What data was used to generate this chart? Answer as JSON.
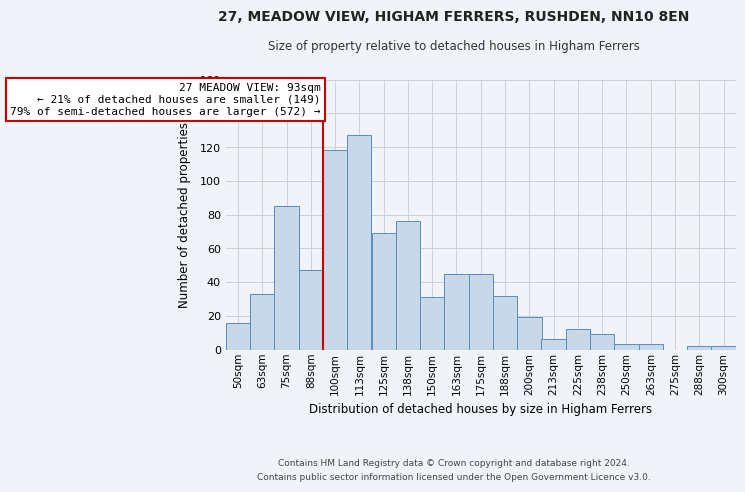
{
  "title": "27, MEADOW VIEW, HIGHAM FERRERS, RUSHDEN, NN10 8EN",
  "subtitle": "Size of property relative to detached houses in Higham Ferrers",
  "xlabel": "Distribution of detached houses by size in Higham Ferrers",
  "ylabel": "Number of detached properties",
  "bar_labels": [
    "50sqm",
    "63sqm",
    "75sqm",
    "88sqm",
    "100sqm",
    "113sqm",
    "125sqm",
    "138sqm",
    "150sqm",
    "163sqm",
    "175sqm",
    "188sqm",
    "200sqm",
    "213sqm",
    "225sqm",
    "238sqm",
    "250sqm",
    "263sqm",
    "275sqm",
    "288sqm",
    "300sqm"
  ],
  "bar_heights": [
    16,
    33,
    85,
    47,
    118,
    127,
    69,
    76,
    31,
    45,
    45,
    32,
    19,
    6,
    12,
    9,
    3,
    3,
    0,
    2,
    2
  ],
  "bar_color": "#c8d8e8",
  "bar_edge_color": "#5b8db8",
  "ylim": [
    0,
    160
  ],
  "yticks": [
    0,
    20,
    40,
    60,
    80,
    100,
    120,
    140,
    160
  ],
  "annotation_title": "27 MEADOW VIEW: 93sqm",
  "annotation_line1": "← 21% of detached houses are smaller (149)",
  "annotation_line2": "79% of semi-detached houses are larger (572) →",
  "annotation_box_color": "#ffffff",
  "annotation_box_edge": "#cc0000",
  "property_line_color": "#cc0000",
  "footer1": "Contains HM Land Registry data © Crown copyright and database right 2024.",
  "footer2": "Contains public sector information licensed under the Open Government Licence v3.0.",
  "bg_color": "#f0f4fa",
  "grid_color": "#c8d0dc"
}
